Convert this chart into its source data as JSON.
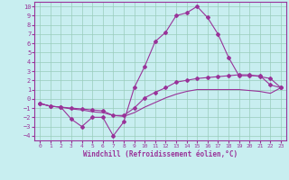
{
  "background_color": "#c8eef0",
  "grid_color": "#99ccbb",
  "line_color": "#993399",
  "spine_color": "#993399",
  "xlabel": "Windchill (Refroidissement éolien,°C)",
  "xlim": [
    -0.5,
    23.5
  ],
  "ylim": [
    -4.5,
    10.5
  ],
  "xticks": [
    0,
    1,
    2,
    3,
    4,
    5,
    6,
    7,
    8,
    9,
    10,
    11,
    12,
    13,
    14,
    15,
    16,
    17,
    18,
    19,
    20,
    21,
    22,
    23
  ],
  "yticks": [
    -4,
    -3,
    -2,
    -1,
    0,
    1,
    2,
    3,
    4,
    5,
    6,
    7,
    8,
    9,
    10
  ],
  "curve1_x": [
    0,
    1,
    2,
    3,
    4,
    5,
    6,
    7,
    8,
    9,
    10,
    11,
    12,
    13,
    14,
    15,
    16,
    17,
    18,
    19,
    20,
    21,
    22,
    23
  ],
  "curve1_y": [
    -0.5,
    -0.8,
    -0.9,
    -2.2,
    -3.0,
    -2.0,
    -2.0,
    -4.0,
    -2.5,
    1.2,
    3.5,
    6.2,
    7.2,
    9.0,
    9.3,
    10.0,
    8.8,
    7.0,
    4.5,
    2.5,
    2.5,
    2.5,
    1.5,
    1.2
  ],
  "curve2_x": [
    0,
    1,
    2,
    3,
    4,
    5,
    6,
    7,
    8,
    9,
    10,
    11,
    12,
    13,
    14,
    15,
    16,
    17,
    18,
    19,
    20,
    21,
    22,
    23
  ],
  "curve2_y": [
    -0.5,
    -0.8,
    -0.9,
    -1.0,
    -1.1,
    -1.2,
    -1.3,
    -1.8,
    -1.8,
    -1.0,
    0.1,
    0.7,
    1.2,
    1.8,
    2.0,
    2.2,
    2.3,
    2.4,
    2.5,
    2.6,
    2.6,
    2.4,
    2.2,
    1.2
  ],
  "curve3_x": [
    0,
    1,
    2,
    3,
    4,
    5,
    6,
    7,
    8,
    9,
    10,
    11,
    12,
    13,
    14,
    15,
    16,
    17,
    18,
    19,
    20,
    21,
    22,
    23
  ],
  "curve3_y": [
    -0.5,
    -0.8,
    -0.9,
    -1.1,
    -1.2,
    -1.4,
    -1.5,
    -1.8,
    -1.9,
    -1.5,
    -0.9,
    -0.4,
    0.1,
    0.5,
    0.8,
    1.0,
    1.0,
    1.0,
    1.0,
    1.0,
    0.9,
    0.8,
    0.6,
    1.2
  ],
  "marker": "D",
  "markersize": 2.0,
  "linewidth": 0.8,
  "xlabel_fontsize": 5.5,
  "tick_fontsize": 5.0
}
